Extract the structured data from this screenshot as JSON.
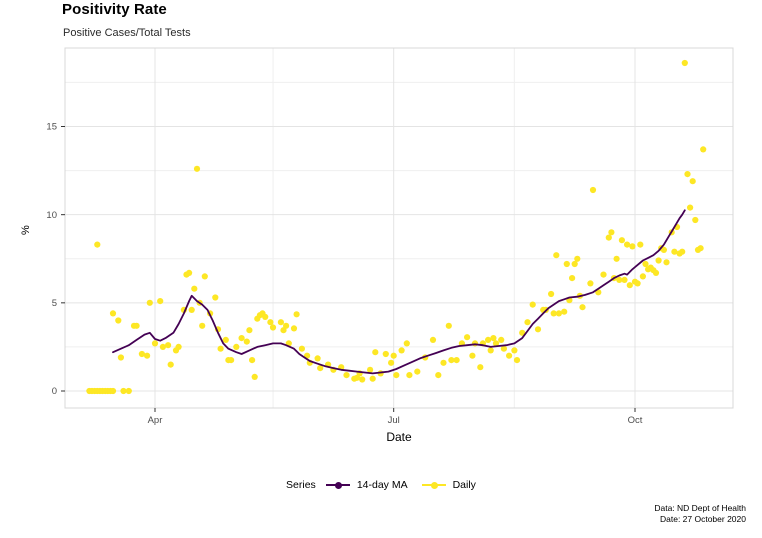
{
  "header": {
    "title": "Positivity Rate",
    "subtitle": "Positive Cases/Total Tests"
  },
  "axis": {
    "x_title": "Date",
    "y_title": "%"
  },
  "legend": {
    "title": "Series",
    "series": [
      {
        "label": "14-day MA",
        "color": "#440154"
      },
      {
        "label": "Daily",
        "color": "#FDE725"
      }
    ]
  },
  "caption": {
    "line1": "Data: ND Dept of Health",
    "line2": "Date: 27 October 2020"
  },
  "colors": {
    "ma_line": "#440154",
    "daily_point": "#FDE725",
    "grid_major": "#e4e4e4",
    "grid_minor": "#efefef",
    "panel_border": "#d8d8d8",
    "tick_mark": "#333333",
    "tick_label": "#4d4d4d"
  },
  "chart_data": {
    "type": "scatter",
    "title": "Positivity Rate",
    "subtitle": "Positive Cases/Total Tests",
    "xlabel": "Date",
    "ylabel": "%",
    "ylim": [
      -0.96,
      19.45
    ],
    "xlim": [
      "2020-02-26",
      "2020-11-07"
    ],
    "grid": true,
    "legend_position": "bottom",
    "x_ticks": [
      {
        "label": "Apr",
        "date": "2020-04-01"
      },
      {
        "label": "Jul",
        "date": "2020-07-01"
      },
      {
        "label": "Oct",
        "date": "2020-10-01"
      }
    ],
    "x_minor": [
      "2020-05-16",
      "2020-08-16"
    ],
    "y_ticks": [
      0,
      5,
      10,
      15
    ],
    "y_minor": [
      2.5,
      7.5,
      12.5,
      17.5
    ],
    "series": [
      {
        "name": "14-day MA",
        "type": "line",
        "color": "#440154",
        "points": [
          [
            "2020-03-16",
            2.2
          ],
          [
            "2020-03-19",
            2.4
          ],
          [
            "2020-03-22",
            2.6
          ],
          [
            "2020-03-25",
            2.9
          ],
          [
            "2020-03-28",
            3.2
          ],
          [
            "2020-03-30",
            3.3
          ],
          [
            "2020-04-01",
            2.95
          ],
          [
            "2020-04-03",
            2.85
          ],
          [
            "2020-04-05",
            3.0
          ],
          [
            "2020-04-08",
            3.3
          ],
          [
            "2020-04-10",
            3.8
          ],
          [
            "2020-04-12",
            4.4
          ],
          [
            "2020-04-14",
            5.1
          ],
          [
            "2020-04-15",
            5.4
          ],
          [
            "2020-04-17",
            5.1
          ],
          [
            "2020-04-19",
            4.9
          ],
          [
            "2020-04-21",
            4.6
          ],
          [
            "2020-04-23",
            4.0
          ],
          [
            "2020-04-25",
            3.3
          ],
          [
            "2020-04-27",
            2.7
          ],
          [
            "2020-04-29",
            2.4
          ],
          [
            "2020-05-02",
            2.2
          ],
          [
            "2020-05-04",
            2.1
          ],
          [
            "2020-05-07",
            2.3
          ],
          [
            "2020-05-10",
            2.5
          ],
          [
            "2020-05-13",
            2.6
          ],
          [
            "2020-05-16",
            2.7
          ],
          [
            "2020-05-19",
            2.7
          ],
          [
            "2020-05-21",
            2.6
          ],
          [
            "2020-05-24",
            2.4
          ],
          [
            "2020-05-26",
            2.1
          ],
          [
            "2020-05-28",
            1.9
          ],
          [
            "2020-05-30",
            1.7
          ],
          [
            "2020-06-02",
            1.55
          ],
          [
            "2020-06-05",
            1.4
          ],
          [
            "2020-06-08",
            1.3
          ],
          [
            "2020-06-11",
            1.2
          ],
          [
            "2020-06-14",
            1.15
          ],
          [
            "2020-06-17",
            1.1
          ],
          [
            "2020-06-20",
            1.05
          ],
          [
            "2020-06-23",
            1.0
          ],
          [
            "2020-06-26",
            1.05
          ],
          [
            "2020-06-29",
            1.1
          ],
          [
            "2020-07-02",
            1.25
          ],
          [
            "2020-07-05",
            1.45
          ],
          [
            "2020-07-08",
            1.65
          ],
          [
            "2020-07-11",
            1.85
          ],
          [
            "2020-07-14",
            2.0
          ],
          [
            "2020-07-17",
            2.15
          ],
          [
            "2020-07-20",
            2.3
          ],
          [
            "2020-07-23",
            2.45
          ],
          [
            "2020-07-26",
            2.55
          ],
          [
            "2020-07-29",
            2.6
          ],
          [
            "2020-08-01",
            2.65
          ],
          [
            "2020-08-04",
            2.6
          ],
          [
            "2020-08-07",
            2.5
          ],
          [
            "2020-08-10",
            2.55
          ],
          [
            "2020-08-13",
            2.6
          ],
          [
            "2020-08-16",
            2.7
          ],
          [
            "2020-08-19",
            3.0
          ],
          [
            "2020-08-21",
            3.4
          ],
          [
            "2020-08-23",
            3.8
          ],
          [
            "2020-08-25",
            4.1
          ],
          [
            "2020-08-27",
            4.4
          ],
          [
            "2020-08-29",
            4.7
          ],
          [
            "2020-08-31",
            4.9
          ],
          [
            "2020-09-02",
            5.1
          ],
          [
            "2020-09-04",
            5.2
          ],
          [
            "2020-09-06",
            5.3
          ],
          [
            "2020-09-09",
            5.35
          ],
          [
            "2020-09-12",
            5.45
          ],
          [
            "2020-09-15",
            5.6
          ],
          [
            "2020-09-17",
            5.8
          ],
          [
            "2020-09-19",
            6.0
          ],
          [
            "2020-09-21",
            6.2
          ],
          [
            "2020-09-23",
            6.4
          ],
          [
            "2020-09-25",
            6.55
          ],
          [
            "2020-09-27",
            6.65
          ],
          [
            "2020-09-28",
            6.6
          ],
          [
            "2020-09-30",
            6.9
          ],
          [
            "2020-10-02",
            7.15
          ],
          [
            "2020-10-04",
            7.4
          ],
          [
            "2020-10-06",
            7.55
          ],
          [
            "2020-10-08",
            7.7
          ],
          [
            "2020-10-10",
            7.95
          ],
          [
            "2020-10-12",
            8.3
          ],
          [
            "2020-10-14",
            8.8
          ],
          [
            "2020-10-16",
            9.3
          ],
          [
            "2020-10-18",
            9.8
          ],
          [
            "2020-10-19",
            10.0
          ],
          [
            "2020-10-20",
            10.25
          ]
        ]
      },
      {
        "name": "Daily",
        "type": "scatter",
        "color": "#FDE725",
        "points": [
          [
            "2020-03-07",
            0
          ],
          [
            "2020-03-08",
            0
          ],
          [
            "2020-03-09",
            0
          ],
          [
            "2020-03-10",
            8.3
          ],
          [
            "2020-03-10",
            0
          ],
          [
            "2020-03-11",
            0
          ],
          [
            "2020-03-12",
            0
          ],
          [
            "2020-03-13",
            0
          ],
          [
            "2020-03-14",
            0
          ],
          [
            "2020-03-15",
            0
          ],
          [
            "2020-03-16",
            0
          ],
          [
            "2020-03-16",
            4.4
          ],
          [
            "2020-03-18",
            4.0
          ],
          [
            "2020-03-19",
            1.9
          ],
          [
            "2020-03-20",
            0
          ],
          [
            "2020-03-22",
            0
          ],
          [
            "2020-03-24",
            3.7
          ],
          [
            "2020-03-25",
            3.7
          ],
          [
            "2020-03-27",
            2.1
          ],
          [
            "2020-03-29",
            2.0
          ],
          [
            "2020-03-30",
            5.0
          ],
          [
            "2020-04-01",
            2.7
          ],
          [
            "2020-04-03",
            5.1
          ],
          [
            "2020-04-04",
            2.5
          ],
          [
            "2020-04-06",
            2.6
          ],
          [
            "2020-04-07",
            1.5
          ],
          [
            "2020-04-09",
            2.3
          ],
          [
            "2020-04-10",
            2.5
          ],
          [
            "2020-04-12",
            4.6
          ],
          [
            "2020-04-13",
            6.6
          ],
          [
            "2020-04-14",
            6.7
          ],
          [
            "2020-04-15",
            4.6
          ],
          [
            "2020-04-16",
            5.8
          ],
          [
            "2020-04-17",
            12.6
          ],
          [
            "2020-04-18",
            5.0
          ],
          [
            "2020-04-19",
            3.7
          ],
          [
            "2020-04-20",
            6.5
          ],
          [
            "2020-04-22",
            4.4
          ],
          [
            "2020-04-24",
            5.3
          ],
          [
            "2020-04-25",
            3.5
          ],
          [
            "2020-04-26",
            2.4
          ],
          [
            "2020-04-28",
            2.9
          ],
          [
            "2020-04-29",
            1.75
          ],
          [
            "2020-04-30",
            1.75
          ],
          [
            "2020-05-02",
            2.5
          ],
          [
            "2020-05-04",
            3.0
          ],
          [
            "2020-05-06",
            2.8
          ],
          [
            "2020-05-07",
            3.45
          ],
          [
            "2020-05-08",
            1.75
          ],
          [
            "2020-05-09",
            0.8
          ],
          [
            "2020-05-10",
            4.1
          ],
          [
            "2020-05-11",
            4.3
          ],
          [
            "2020-05-12",
            4.4
          ],
          [
            "2020-05-13",
            4.2
          ],
          [
            "2020-05-15",
            3.9
          ],
          [
            "2020-05-16",
            3.6
          ],
          [
            "2020-05-19",
            3.9
          ],
          [
            "2020-05-20",
            3.45
          ],
          [
            "2020-05-21",
            3.7
          ],
          [
            "2020-05-22",
            2.7
          ],
          [
            "2020-05-24",
            3.55
          ],
          [
            "2020-05-25",
            4.35
          ],
          [
            "2020-05-27",
            2.4
          ],
          [
            "2020-05-29",
            2.0
          ],
          [
            "2020-05-30",
            1.6
          ],
          [
            "2020-06-02",
            1.85
          ],
          [
            "2020-06-03",
            1.3
          ],
          [
            "2020-06-06",
            1.5
          ],
          [
            "2020-06-08",
            1.2
          ],
          [
            "2020-06-11",
            1.35
          ],
          [
            "2020-06-13",
            0.9
          ],
          [
            "2020-06-16",
            0.7
          ],
          [
            "2020-06-17",
            0.75
          ],
          [
            "2020-06-18",
            1.0
          ],
          [
            "2020-06-19",
            0.65
          ],
          [
            "2020-06-22",
            1.2
          ],
          [
            "2020-06-23",
            0.7
          ],
          [
            "2020-06-24",
            2.2
          ],
          [
            "2020-06-26",
            1.0
          ],
          [
            "2020-06-28",
            2.1
          ],
          [
            "2020-06-30",
            1.6
          ],
          [
            "2020-07-01",
            2.0
          ],
          [
            "2020-07-02",
            0.9
          ],
          [
            "2020-07-04",
            2.3
          ],
          [
            "2020-07-06",
            2.7
          ],
          [
            "2020-07-07",
            0.9
          ],
          [
            "2020-07-10",
            1.1
          ],
          [
            "2020-07-13",
            1.9
          ],
          [
            "2020-07-16",
            2.9
          ],
          [
            "2020-07-18",
            0.9
          ],
          [
            "2020-07-20",
            1.6
          ],
          [
            "2020-07-22",
            3.7
          ],
          [
            "2020-07-23",
            1.75
          ],
          [
            "2020-07-25",
            1.75
          ],
          [
            "2020-07-27",
            2.7
          ],
          [
            "2020-07-29",
            3.05
          ],
          [
            "2020-07-31",
            2.0
          ],
          [
            "2020-08-01",
            2.7
          ],
          [
            "2020-08-03",
            1.35
          ],
          [
            "2020-08-04",
            2.7
          ],
          [
            "2020-08-06",
            2.9
          ],
          [
            "2020-08-07",
            2.3
          ],
          [
            "2020-08-08",
            3.0
          ],
          [
            "2020-08-09",
            2.7
          ],
          [
            "2020-08-11",
            2.9
          ],
          [
            "2020-08-12",
            2.4
          ],
          [
            "2020-08-14",
            2.0
          ],
          [
            "2020-08-16",
            2.3
          ],
          [
            "2020-08-17",
            1.75
          ],
          [
            "2020-08-19",
            3.3
          ],
          [
            "2020-08-21",
            3.9
          ],
          [
            "2020-08-23",
            4.9
          ],
          [
            "2020-08-25",
            3.5
          ],
          [
            "2020-08-27",
            4.6
          ],
          [
            "2020-08-28",
            4.6
          ],
          [
            "2020-08-30",
            5.5
          ],
          [
            "2020-08-31",
            4.4
          ],
          [
            "2020-09-01",
            7.7
          ],
          [
            "2020-09-02",
            4.4
          ],
          [
            "2020-09-04",
            4.5
          ],
          [
            "2020-09-05",
            7.2
          ],
          [
            "2020-09-06",
            5.15
          ],
          [
            "2020-09-07",
            6.4
          ],
          [
            "2020-09-08",
            7.2
          ],
          [
            "2020-09-09",
            7.5
          ],
          [
            "2020-09-10",
            5.4
          ],
          [
            "2020-09-11",
            4.75
          ],
          [
            "2020-09-14",
            6.1
          ],
          [
            "2020-09-15",
            11.4
          ],
          [
            "2020-09-17",
            5.6
          ],
          [
            "2020-09-19",
            6.6
          ],
          [
            "2020-09-21",
            8.7
          ],
          [
            "2020-09-22",
            9.0
          ],
          [
            "2020-09-23",
            6.4
          ],
          [
            "2020-09-24",
            7.5
          ],
          [
            "2020-09-25",
            6.3
          ],
          [
            "2020-09-26",
            8.55
          ],
          [
            "2020-09-27",
            6.3
          ],
          [
            "2020-09-28",
            8.3
          ],
          [
            "2020-09-29",
            6.0
          ],
          [
            "2020-09-30",
            8.2
          ],
          [
            "2020-10-01",
            6.2
          ],
          [
            "2020-10-02",
            6.1
          ],
          [
            "2020-10-03",
            8.3
          ],
          [
            "2020-10-04",
            6.5
          ],
          [
            "2020-10-05",
            7.2
          ],
          [
            "2020-10-06",
            6.9
          ],
          [
            "2020-10-07",
            7.0
          ],
          [
            "2020-10-08",
            6.85
          ],
          [
            "2020-10-09",
            6.7
          ],
          [
            "2020-10-10",
            7.4
          ],
          [
            "2020-10-11",
            8.1
          ],
          [
            "2020-10-12",
            8.0
          ],
          [
            "2020-10-13",
            7.3
          ],
          [
            "2020-10-15",
            9.0
          ],
          [
            "2020-10-16",
            7.9
          ],
          [
            "2020-10-17",
            9.3
          ],
          [
            "2020-10-18",
            7.8
          ],
          [
            "2020-10-19",
            7.9
          ],
          [
            "2020-10-20",
            18.6
          ],
          [
            "2020-10-21",
            12.3
          ],
          [
            "2020-10-22",
            10.4
          ],
          [
            "2020-10-23",
            11.9
          ],
          [
            "2020-10-24",
            9.7
          ],
          [
            "2020-10-25",
            8.0
          ],
          [
            "2020-10-26",
            8.1
          ],
          [
            "2020-10-27",
            13.7
          ]
        ]
      }
    ]
  }
}
